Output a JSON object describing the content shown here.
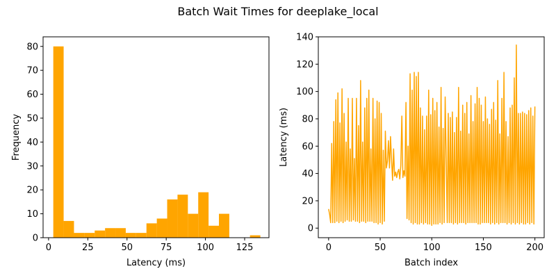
{
  "figure": {
    "title": "Batch Wait Times for deeplake_local",
    "bar_color": "#ffa500",
    "line_color": "#ffa500"
  },
  "chart_data": [
    {
      "type": "bar",
      "name": "histogram",
      "xlabel": "Latency (ms)",
      "ylabel": "Frequency",
      "xlim": [
        -3.5,
        140.5
      ],
      "ylim": [
        0,
        84
      ],
      "xticks": [
        0,
        25,
        50,
        75,
        100,
        125
      ],
      "yticks": [
        0,
        10,
        20,
        30,
        40,
        50,
        60,
        70,
        80
      ],
      "bins": [
        {
          "x0": 3.0,
          "x1": 9.6,
          "count": 80
        },
        {
          "x0": 9.6,
          "x1": 16.2,
          "count": 7
        },
        {
          "x0": 16.2,
          "x1": 22.8,
          "count": 2
        },
        {
          "x0": 22.8,
          "x1": 29.4,
          "count": 2
        },
        {
          "x0": 29.4,
          "x1": 36.0,
          "count": 3
        },
        {
          "x0": 36.0,
          "x1": 42.6,
          "count": 4
        },
        {
          "x0": 42.6,
          "x1": 49.2,
          "count": 4
        },
        {
          "x0": 49.2,
          "x1": 55.8,
          "count": 2
        },
        {
          "x0": 55.8,
          "x1": 62.4,
          "count": 2
        },
        {
          "x0": 62.4,
          "x1": 69.0,
          "count": 6
        },
        {
          "x0": 69.0,
          "x1": 75.6,
          "count": 8
        },
        {
          "x0": 75.6,
          "x1": 82.2,
          "count": 16
        },
        {
          "x0": 82.2,
          "x1": 88.8,
          "count": 18
        },
        {
          "x0": 88.8,
          "x1": 95.4,
          "count": 10
        },
        {
          "x0": 95.4,
          "x1": 102.0,
          "count": 19
        },
        {
          "x0": 102.0,
          "x1": 108.6,
          "count": 5
        },
        {
          "x0": 108.6,
          "x1": 115.2,
          "count": 10
        },
        {
          "x0": 115.2,
          "x1": 121.8,
          "count": 0
        },
        {
          "x0": 121.8,
          "x1": 128.4,
          "count": 0
        },
        {
          "x0": 128.4,
          "x1": 135.0,
          "count": 1
        }
      ]
    },
    {
      "type": "line",
      "name": "timeseries",
      "xlabel": "Batch index",
      "ylabel": "Latency (ms)",
      "xlim": [
        -10,
        209
      ],
      "ylim": [
        -7,
        140
      ],
      "xticks": [
        0,
        50,
        100,
        150,
        200
      ],
      "yticks": [
        0,
        20,
        40,
        60,
        80,
        100,
        120,
        140
      ],
      "x_start": 0,
      "values": [
        14,
        10,
        4,
        62,
        4,
        78,
        4,
        94,
        5,
        99,
        4,
        77,
        5,
        102,
        4,
        84,
        5,
        63,
        6,
        95,
        5,
        58,
        5,
        95,
        6,
        51,
        5,
        95,
        5,
        75,
        4,
        108,
        5,
        63,
        5,
        88,
        4,
        95,
        5,
        101,
        5,
        58,
        5,
        95,
        4,
        80,
        4,
        93,
        3,
        92,
        4,
        84,
        3,
        57,
        5,
        71,
        44,
        49,
        64,
        44,
        67,
        50,
        35,
        58,
        38,
        41,
        37,
        41,
        43,
        36,
        46,
        82,
        37,
        42,
        38,
        92,
        7,
        60,
        6,
        113,
        4,
        101,
        3,
        114,
        4,
        111,
        3,
        114,
        3,
        88,
        4,
        82,
        3,
        72,
        4,
        82,
        3,
        101,
        3,
        83,
        2,
        95,
        3,
        86,
        3,
        92,
        3,
        74,
        4,
        103,
        3,
        73,
        4,
        96,
        51,
        4,
        84,
        4,
        81,
        4,
        85,
        3,
        70,
        4,
        81,
        3,
        103,
        4,
        71,
        4,
        90,
        4,
        84,
        3,
        92,
        4,
        69,
        4,
        97,
        4,
        78,
        4,
        91,
        4,
        103,
        3,
        95,
        3,
        90,
        4,
        78,
        4,
        96,
        4,
        80,
        4,
        76,
        3,
        87,
        4,
        92,
        3,
        79,
        4,
        108,
        3,
        69,
        4,
        95,
        4,
        114,
        4,
        78,
        3,
        67,
        4,
        88,
        3,
        90,
        4,
        110,
        3,
        134,
        4,
        84,
        3,
        84,
        4,
        85,
        3,
        84,
        3,
        83,
        4,
        86,
        3,
        88,
        4,
        82,
        3,
        89
      ]
    }
  ]
}
